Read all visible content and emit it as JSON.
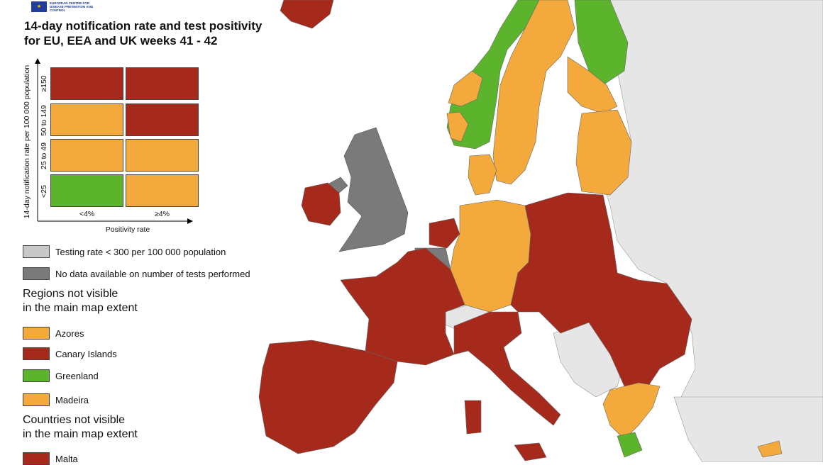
{
  "logo": {
    "org_text": "EUROPEAN CENTRE FOR DISEASE PREVENTION AND CONTROL"
  },
  "title": {
    "line1": "14-day notification rate and test positivity",
    "line2": "for EU, EEA and UK weeks 41 - 42"
  },
  "matrix": {
    "y_axis_label": "14-day notification rate per 100 000 population",
    "x_axis_label": "Positivity rate",
    "rows": [
      "≥150",
      "50 to 149",
      "25 to 49",
      "<25"
    ],
    "columns": [
      "<4%",
      "≥4%"
    ],
    "cells": [
      [
        "red",
        "red"
      ],
      [
        "orange",
        "red"
      ],
      [
        "orange",
        "orange"
      ],
      [
        "green",
        "orange"
      ]
    ]
  },
  "legend": {
    "testing_rate_low": "Testing rate < 300 per 100 000 population",
    "no_data": "No data available on number of tests performed",
    "regions_heading_line1": "Regions not visible",
    "regions_heading_line2": "in the main map extent",
    "regions": [
      {
        "name": "Azores",
        "color": "orange"
      },
      {
        "name": "Canary Islands",
        "color": "red"
      },
      {
        "name": "Greenland",
        "color": "green"
      },
      {
        "name": "Madeira",
        "color": "orange"
      }
    ],
    "countries_heading_line1": "Countries not visible",
    "countries_heading_line2": "in the main map extent",
    "countries": [
      {
        "name": "Malta",
        "color": "red"
      }
    ]
  },
  "colors": {
    "red": "#a52a1c",
    "orange": "#f3a93c",
    "green": "#5cb42d",
    "light_grey": "#c8c8c8",
    "dark_grey": "#7a7a7a",
    "non_eu": "#e6e6e6",
    "sea": "#ffffff"
  }
}
